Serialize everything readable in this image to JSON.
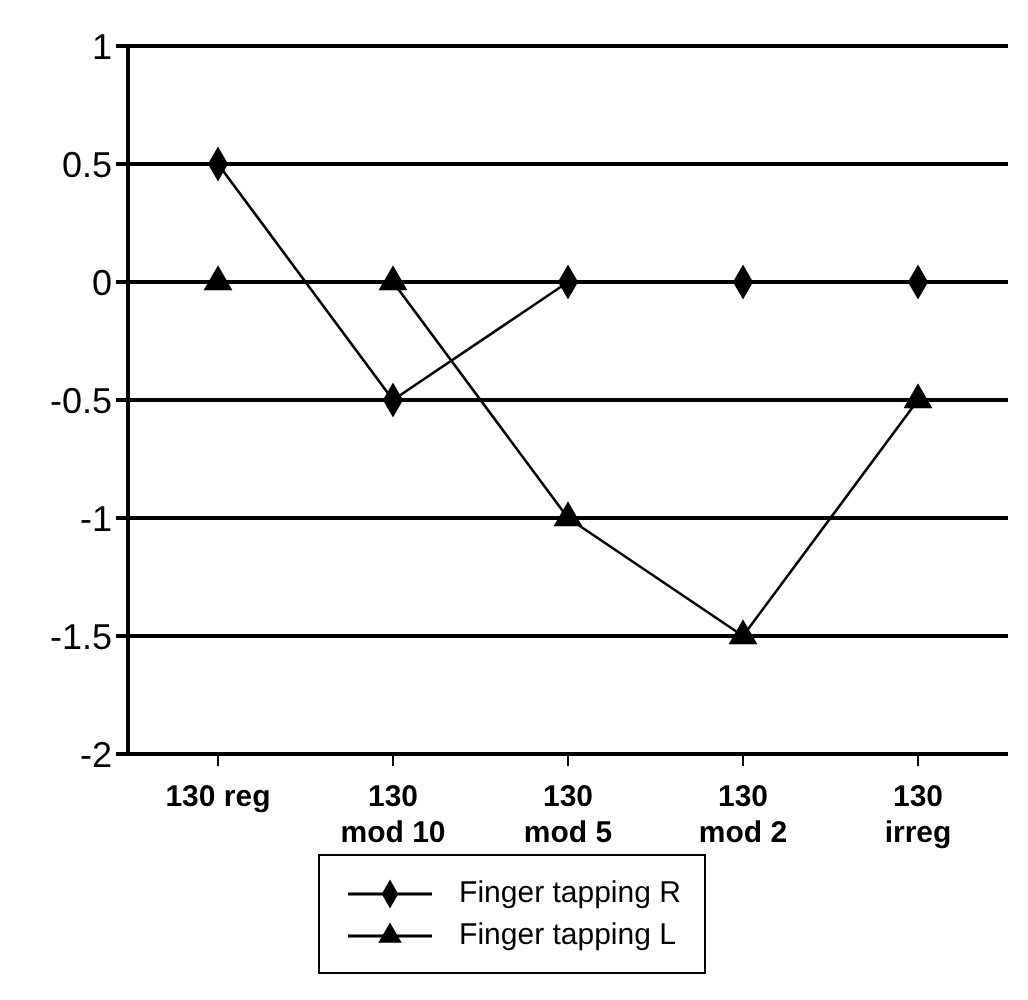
{
  "chart_data": {
    "type": "line",
    "categories": [
      "130 reg",
      "130 mod 10",
      "130 mod 5",
      "130 mod 2",
      "130 irreg"
    ],
    "series": [
      {
        "name": "Finger tapping R",
        "color": "#000000",
        "marker": "diamond",
        "values": [
          0.5,
          -0.5,
          0,
          0,
          0
        ]
      },
      {
        "name": "Finger tapping L",
        "color": "#000000",
        "marker": "triangle",
        "values": [
          0,
          0,
          -1,
          -1.5,
          -0.5
        ]
      }
    ],
    "ylim": [
      -2,
      1
    ],
    "yticks": [
      -2,
      -1.5,
      -1,
      -0.5,
      0,
      0.5,
      1
    ],
    "grid": "y",
    "legend": "bottom",
    "line_style": "solid"
  }
}
